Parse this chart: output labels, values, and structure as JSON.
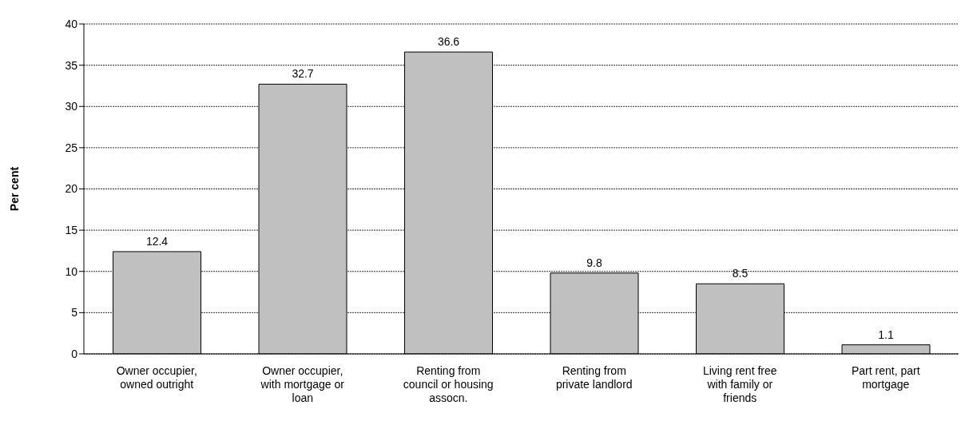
{
  "chart_data": {
    "type": "bar",
    "ylabel": "Per cent",
    "categories": [
      "Owner occupier, owned outright",
      "Owner occupier, with mortgage or loan",
      "Renting from council or housing assocn.",
      "Renting from private landlord",
      "Living rent free with family or friends",
      "Part rent, part mortgage"
    ],
    "values": [
      12.4,
      32.7,
      36.6,
      9.8,
      8.5,
      1.1
    ],
    "color": "#c0c0c0",
    "ylim": [
      0,
      40
    ],
    "yticks": [
      0,
      5,
      10,
      15,
      20,
      25,
      30,
      35,
      40
    ],
    "grid": "y",
    "data_labels": true
  }
}
